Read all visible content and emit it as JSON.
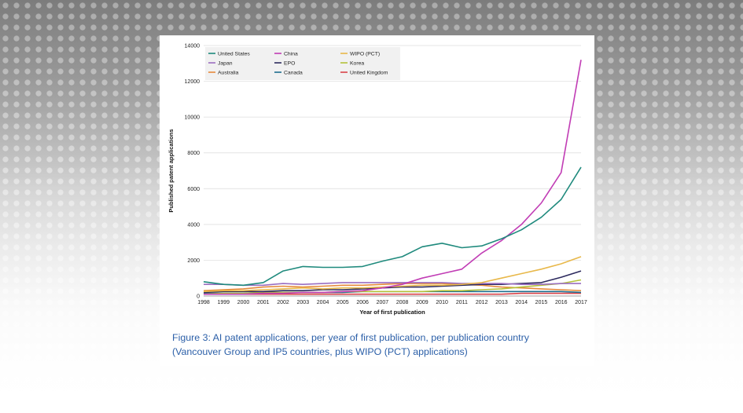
{
  "caption": {
    "line1": "Figure 3: AI patent applications, per year of first publication, per publication country",
    "line2": "(Vancouver Group and IP5 countries, plus WIPO (PCT) applications)"
  },
  "chart_data": {
    "type": "line",
    "xlabel": "Year of first publication",
    "ylabel": "Published patent applications",
    "ylim": [
      0,
      14000
    ],
    "yticks": [
      0,
      2000,
      4000,
      6000,
      8000,
      10000,
      12000,
      14000
    ],
    "grid": "horizontal",
    "legend_placement": "top-left",
    "x": [
      1998,
      1999,
      2000,
      2001,
      2002,
      2003,
      2004,
      2005,
      2006,
      2007,
      2008,
      2009,
      2010,
      2011,
      2012,
      2013,
      2014,
      2015,
      2016,
      2017
    ],
    "series": [
      {
        "name": "United States",
        "color": "#1f8a7d",
        "values": [
          800,
          650,
          600,
          750,
          1400,
          1650,
          1600,
          1600,
          1650,
          1950,
          2200,
          2750,
          2950,
          2700,
          2800,
          3200,
          3700,
          4400,
          5400,
          7200
        ]
      },
      {
        "name": "China",
        "color": "#c13db5",
        "values": [
          100,
          100,
          100,
          150,
          150,
          200,
          200,
          250,
          300,
          450,
          650,
          1000,
          1250,
          1500,
          2400,
          3100,
          4000,
          5200,
          6900,
          13200
        ]
      },
      {
        "name": "WIPO (PCT)",
        "color": "#e8b84a",
        "values": [
          250,
          300,
          300,
          350,
          400,
          450,
          400,
          450,
          450,
          500,
          550,
          600,
          600,
          650,
          750,
          1000,
          1250,
          1500,
          1800,
          2200
        ]
      },
      {
        "name": "Japan",
        "color": "#9b6fc1",
        "values": [
          650,
          650,
          600,
          600,
          700,
          650,
          700,
          750,
          750,
          750,
          750,
          750,
          750,
          700,
          700,
          700,
          650,
          650,
          700,
          700
        ]
      },
      {
        "name": "EPO",
        "color": "#2c2a5e",
        "values": [
          200,
          250,
          250,
          250,
          300,
          300,
          350,
          350,
          400,
          450,
          500,
          500,
          550,
          600,
          650,
          650,
          700,
          750,
          1050,
          1400
        ]
      },
      {
        "name": "Korea",
        "color": "#b5c23a",
        "values": [
          100,
          150,
          150,
          200,
          200,
          200,
          200,
          250,
          250,
          250,
          250,
          250,
          300,
          300,
          350,
          400,
          500,
          600,
          700,
          900
        ]
      },
      {
        "name": "Australia",
        "color": "#e68a3c",
        "values": [
          300,
          350,
          400,
          500,
          550,
          500,
          550,
          600,
          600,
          650,
          700,
          700,
          700,
          650,
          600,
          500,
          450,
          400,
          350,
          300
        ]
      },
      {
        "name": "Canada",
        "color": "#1e6f8f",
        "values": [
          150,
          150,
          150,
          200,
          200,
          200,
          200,
          200,
          250,
          250,
          250,
          250,
          250,
          250,
          250,
          250,
          250,
          250,
          250,
          200
        ]
      },
      {
        "name": "United Kingdom",
        "color": "#d9434a",
        "values": [
          100,
          100,
          100,
          100,
          100,
          100,
          100,
          100,
          100,
          100,
          100,
          100,
          100,
          100,
          100,
          100,
          150,
          150,
          150,
          150
        ]
      }
    ]
  }
}
